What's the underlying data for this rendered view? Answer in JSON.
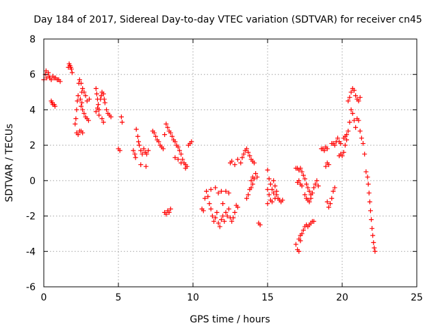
{
  "chart_data": {
    "type": "scatter",
    "title": "Day 184 of 2017, Sidereal Day-to-day VTEC variation (SDTVAR) for receiver cn45",
    "xlabel": "GPS time / hours",
    "ylabel": "SDTVAR / TECUs",
    "xlim": [
      0,
      25
    ],
    "ylim": [
      -6,
      8
    ],
    "xticks": [
      "0",
      "5",
      "10",
      "15",
      "20",
      "25"
    ],
    "yticks": [
      "-6",
      "-4",
      "-2",
      "0",
      "2",
      "4",
      "6",
      "8"
    ],
    "grid": true,
    "marker": "+",
    "color": "#ff0000",
    "series": [
      {
        "name": "SDTVAR",
        "points": [
          [
            0.0,
            5.7
          ],
          [
            0.1,
            6.0
          ],
          [
            0.15,
            6.2
          ],
          [
            0.2,
            5.8
          ],
          [
            0.3,
            6.1
          ],
          [
            0.35,
            5.9
          ],
          [
            0.4,
            5.8
          ],
          [
            0.5,
            5.7
          ],
          [
            0.6,
            5.9
          ],
          [
            0.7,
            5.8
          ],
          [
            0.8,
            5.8
          ],
          [
            0.9,
            5.7
          ],
          [
            1.0,
            5.7
          ],
          [
            1.1,
            5.6
          ],
          [
            0.5,
            4.5
          ],
          [
            0.55,
            4.4
          ],
          [
            0.6,
            4.3
          ],
          [
            0.7,
            4.3
          ],
          [
            0.75,
            4.2
          ],
          [
            1.65,
            6.4
          ],
          [
            1.7,
            6.6
          ],
          [
            1.75,
            6.5
          ],
          [
            1.8,
            6.4
          ],
          [
            1.85,
            6.3
          ],
          [
            1.9,
            6.1
          ],
          [
            2.1,
            3.2
          ],
          [
            2.15,
            3.5
          ],
          [
            2.2,
            4.0
          ],
          [
            2.25,
            4.5
          ],
          [
            2.3,
            4.8
          ],
          [
            2.2,
            2.7
          ],
          [
            2.3,
            2.6
          ],
          [
            2.4,
            2.8
          ],
          [
            2.5,
            2.8
          ],
          [
            2.6,
            2.7
          ],
          [
            2.35,
            5.5
          ],
          [
            2.4,
            5.7
          ],
          [
            2.5,
            5.5
          ],
          [
            2.6,
            5.2
          ],
          [
            2.7,
            5.0
          ],
          [
            2.8,
            4.8
          ],
          [
            2.9,
            4.5
          ],
          [
            2.6,
            4.0
          ],
          [
            2.7,
            3.8
          ],
          [
            2.8,
            3.6
          ],
          [
            2.9,
            3.5
          ],
          [
            3.0,
            3.4
          ],
          [
            3.05,
            4.6
          ],
          [
            2.5,
            4.2
          ],
          [
            2.55,
            4.4
          ],
          [
            2.45,
            4.6
          ],
          [
            2.55,
            5.0
          ],
          [
            3.5,
            5.2
          ],
          [
            3.55,
            4.9
          ],
          [
            3.6,
            4.6
          ],
          [
            3.65,
            4.3
          ],
          [
            3.7,
            4.0
          ],
          [
            3.5,
            3.9
          ],
          [
            3.6,
            4.1
          ],
          [
            3.7,
            3.7
          ],
          [
            3.8,
            4.6
          ],
          [
            3.85,
            4.8
          ],
          [
            3.9,
            5.0
          ],
          [
            4.0,
            4.9
          ],
          [
            4.05,
            4.6
          ],
          [
            4.1,
            4.4
          ],
          [
            4.2,
            4.0
          ],
          [
            4.3,
            3.8
          ],
          [
            4.4,
            3.7
          ],
          [
            4.5,
            3.6
          ],
          [
            3.9,
            3.5
          ],
          [
            4.0,
            3.3
          ],
          [
            5.0,
            1.8
          ],
          [
            5.1,
            1.7
          ],
          [
            5.2,
            3.6
          ],
          [
            5.25,
            3.3
          ],
          [
            6.0,
            1.7
          ],
          [
            6.1,
            1.5
          ],
          [
            6.15,
            1.3
          ],
          [
            6.2,
            2.9
          ],
          [
            6.3,
            2.5
          ],
          [
            6.35,
            2.2
          ],
          [
            6.4,
            2.0
          ],
          [
            6.5,
            1.7
          ],
          [
            6.6,
            1.5
          ],
          [
            6.7,
            1.8
          ],
          [
            6.8,
            1.6
          ],
          [
            6.9,
            1.5
          ],
          [
            7.0,
            1.7
          ],
          [
            6.5,
            0.9
          ],
          [
            6.85,
            0.8
          ],
          [
            7.3,
            2.8
          ],
          [
            7.4,
            2.7
          ],
          [
            7.5,
            2.5
          ],
          [
            7.6,
            2.3
          ],
          [
            7.7,
            2.2
          ],
          [
            7.8,
            2.0
          ],
          [
            7.9,
            1.9
          ],
          [
            8.0,
            1.8
          ],
          [
            8.1,
            2.6
          ],
          [
            8.2,
            3.2
          ],
          [
            8.3,
            3.0
          ],
          [
            8.4,
            2.8
          ],
          [
            8.5,
            2.7
          ],
          [
            8.6,
            2.5
          ],
          [
            8.7,
            2.3
          ],
          [
            8.8,
            2.2
          ],
          [
            8.9,
            2.0
          ],
          [
            9.0,
            1.9
          ],
          [
            9.1,
            1.7
          ],
          [
            9.2,
            1.5
          ],
          [
            9.3,
            1.2
          ],
          [
            9.4,
            1.0
          ],
          [
            9.5,
            0.9
          ],
          [
            9.6,
            0.8
          ],
          [
            9.7,
            2.0
          ],
          [
            9.8,
            2.1
          ],
          [
            9.9,
            2.2
          ],
          [
            8.8,
            1.3
          ],
          [
            9.0,
            1.2
          ],
          [
            9.2,
            1.0
          ],
          [
            9.5,
            0.7
          ],
          [
            8.1,
            -1.8
          ],
          [
            8.2,
            -1.9
          ],
          [
            8.3,
            -1.7
          ],
          [
            8.4,
            -1.8
          ],
          [
            8.5,
            -1.6
          ],
          [
            10.6,
            -1.6
          ],
          [
            10.7,
            -1.7
          ],
          [
            10.8,
            -1.0
          ],
          [
            10.9,
            -0.6
          ],
          [
            11.0,
            -0.9
          ],
          [
            11.1,
            -1.3
          ],
          [
            11.2,
            -1.6
          ],
          [
            11.3,
            -2.0
          ],
          [
            11.4,
            -2.3
          ],
          [
            11.5,
            -2.1
          ],
          [
            11.6,
            -1.8
          ],
          [
            11.7,
            -2.4
          ],
          [
            11.8,
            -2.6
          ],
          [
            11.9,
            -2.2
          ],
          [
            12.0,
            -2.0
          ],
          [
            12.1,
            -2.3
          ],
          [
            12.2,
            -1.8
          ],
          [
            12.3,
            -2.0
          ],
          [
            12.4,
            -1.6
          ],
          [
            12.5,
            -2.1
          ],
          [
            12.6,
            -2.3
          ],
          [
            12.7,
            -2.1
          ],
          [
            12.8,
            -1.8
          ],
          [
            12.9,
            -1.4
          ],
          [
            13.0,
            -1.5
          ],
          [
            11.2,
            -0.5
          ],
          [
            11.5,
            -0.4
          ],
          [
            11.7,
            -0.7
          ],
          [
            11.9,
            -0.6
          ],
          [
            12.2,
            -0.6
          ],
          [
            12.4,
            -0.7
          ],
          [
            12.0,
            -1.3
          ],
          [
            12.5,
            1.0
          ],
          [
            12.6,
            1.1
          ],
          [
            12.8,
            0.9
          ],
          [
            13.0,
            1.2
          ],
          [
            13.2,
            1.0
          ],
          [
            13.3,
            1.3
          ],
          [
            13.4,
            1.5
          ],
          [
            13.5,
            1.7
          ],
          [
            13.6,
            1.8
          ],
          [
            13.7,
            1.6
          ],
          [
            13.8,
            1.4
          ],
          [
            13.9,
            1.2
          ],
          [
            14.0,
            1.1
          ],
          [
            14.1,
            1.0
          ],
          [
            13.6,
            -1.0
          ],
          [
            13.7,
            -0.8
          ],
          [
            13.8,
            -0.5
          ],
          [
            13.9,
            0.0
          ],
          [
            14.0,
            0.2
          ],
          [
            14.1,
            0.1
          ],
          [
            14.2,
            0.4
          ],
          [
            14.3,
            0.2
          ],
          [
            13.9,
            -0.4
          ],
          [
            14.0,
            -0.2
          ],
          [
            14.4,
            -2.4
          ],
          [
            14.5,
            -2.5
          ],
          [
            15.0,
            0.6
          ],
          [
            15.1,
            0.1
          ],
          [
            15.2,
            -0.2
          ],
          [
            15.3,
            -0.5
          ],
          [
            15.4,
            -0.7
          ],
          [
            15.5,
            -1.0
          ],
          [
            15.6,
            -0.8
          ],
          [
            15.7,
            -1.0
          ],
          [
            15.8,
            -1.1
          ],
          [
            15.9,
            -1.2
          ],
          [
            16.0,
            -1.1
          ],
          [
            15.0,
            -0.5
          ],
          [
            15.1,
            -0.8
          ],
          [
            15.2,
            -1.1
          ],
          [
            15.3,
            -1.2
          ],
          [
            15.4,
            0.0
          ],
          [
            15.5,
            -0.3
          ],
          [
            15.6,
            -0.6
          ],
          [
            15.0,
            -1.3
          ],
          [
            16.9,
            -3.6
          ],
          [
            17.0,
            -3.9
          ],
          [
            17.1,
            -4.0
          ],
          [
            17.2,
            -3.4
          ],
          [
            17.3,
            -3.0
          ],
          [
            17.4,
            -2.8
          ],
          [
            17.5,
            -2.6
          ],
          [
            17.6,
            -2.5
          ],
          [
            17.7,
            -2.6
          ],
          [
            17.8,
            -2.5
          ],
          [
            17.9,
            -2.4
          ],
          [
            18.0,
            -2.3
          ],
          [
            18.1,
            -2.3
          ],
          [
            17.1,
            -3.3
          ],
          [
            17.2,
            -3.1
          ],
          [
            16.9,
            0.7
          ],
          [
            17.0,
            0.7
          ],
          [
            17.1,
            0.6
          ],
          [
            17.2,
            0.7
          ],
          [
            17.3,
            0.5
          ],
          [
            17.4,
            0.3
          ],
          [
            17.5,
            0.1
          ],
          [
            17.6,
            -0.2
          ],
          [
            17.7,
            -0.4
          ],
          [
            17.8,
            -0.6
          ],
          [
            17.9,
            -0.8
          ],
          [
            18.0,
            -0.7
          ],
          [
            18.1,
            -0.4
          ],
          [
            18.2,
            -0.2
          ],
          [
            18.3,
            0.0
          ],
          [
            18.4,
            -0.3
          ],
          [
            17.0,
            -0.1
          ],
          [
            17.1,
            0.0
          ],
          [
            17.2,
            -0.2
          ],
          [
            17.3,
            -0.3
          ],
          [
            17.5,
            -0.8
          ],
          [
            17.6,
            -1.0
          ],
          [
            17.7,
            -1.1
          ],
          [
            17.8,
            -1.2
          ],
          [
            17.9,
            -1.0
          ],
          [
            18.6,
            1.8
          ],
          [
            18.7,
            1.8
          ],
          [
            18.8,
            1.7
          ],
          [
            18.9,
            1.9
          ],
          [
            19.0,
            1.8
          ],
          [
            18.9,
            0.8
          ],
          [
            19.0,
            1.0
          ],
          [
            19.1,
            0.9
          ],
          [
            19.3,
            2.1
          ],
          [
            19.4,
            2.1
          ],
          [
            19.5,
            2.0
          ],
          [
            19.6,
            2.2
          ],
          [
            19.7,
            2.4
          ],
          [
            19.8,
            2.2
          ],
          [
            19.9,
            2.1
          ],
          [
            19.0,
            -1.2
          ],
          [
            19.1,
            -1.5
          ],
          [
            19.2,
            -1.3
          ],
          [
            19.3,
            -1.0
          ],
          [
            19.4,
            -0.6
          ],
          [
            19.5,
            -0.4
          ],
          [
            19.8,
            1.4
          ],
          [
            19.9,
            1.5
          ],
          [
            20.0,
            1.4
          ],
          [
            20.1,
            1.6
          ],
          [
            20.2,
            2.0
          ],
          [
            20.3,
            2.3
          ],
          [
            20.4,
            2.8
          ],
          [
            20.5,
            3.3
          ],
          [
            20.6,
            4.0
          ],
          [
            20.7,
            3.8
          ],
          [
            20.8,
            3.4
          ],
          [
            20.9,
            3.0
          ],
          [
            21.0,
            3.5
          ],
          [
            21.1,
            3.4
          ],
          [
            21.2,
            2.8
          ],
          [
            21.3,
            2.4
          ],
          [
            21.4,
            2.1
          ],
          [
            21.5,
            1.5
          ],
          [
            20.4,
            4.5
          ],
          [
            20.5,
            4.7
          ],
          [
            20.6,
            5.0
          ],
          [
            20.7,
            5.2
          ],
          [
            20.8,
            5.1
          ],
          [
            20.9,
            4.8
          ],
          [
            21.0,
            4.6
          ],
          [
            21.1,
            4.5
          ],
          [
            21.2,
            4.7
          ],
          [
            20.1,
            2.4
          ],
          [
            20.2,
            2.5
          ],
          [
            20.3,
            2.6
          ],
          [
            21.6,
            0.5
          ],
          [
            21.7,
            0.2
          ],
          [
            21.75,
            -0.2
          ],
          [
            21.8,
            -0.7
          ],
          [
            21.85,
            -1.2
          ],
          [
            21.9,
            -1.7
          ],
          [
            21.95,
            -2.2
          ],
          [
            22.0,
            -2.7
          ],
          [
            22.05,
            -3.1
          ],
          [
            22.1,
            -3.5
          ],
          [
            22.15,
            -3.8
          ],
          [
            22.2,
            -4.0
          ]
        ]
      }
    ]
  }
}
